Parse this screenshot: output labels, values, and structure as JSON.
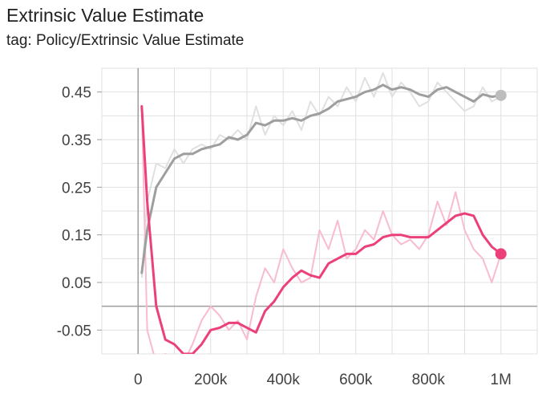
{
  "title": "Extrinsic Value Estimate",
  "subtitle": "tag: Policy/Extrinsic Value Estimate",
  "chart_data": {
    "type": "line",
    "title": "Extrinsic Value Estimate",
    "xlim": [
      -100000,
      1100000
    ],
    "ylim": [
      -0.1,
      0.5
    ],
    "x_ticks": [
      0,
      200000,
      400000,
      600000,
      800000,
      1000000
    ],
    "x_tick_labels": [
      "0",
      "200k",
      "400k",
      "600k",
      "800k",
      "1M"
    ],
    "y_ticks": [
      0.45,
      0.35,
      0.25,
      0.15,
      0.05,
      -0.05
    ],
    "y_tick_labels": [
      "0.45",
      "0.35",
      "0.25",
      "0.15",
      "0.05",
      "-0.05"
    ],
    "grid": true,
    "series": [
      {
        "color": "#9e9e9e",
        "raw_color": "#e0e0e0",
        "x": [
          10000,
          25000,
          50000,
          75000,
          100000,
          125000,
          150000,
          175000,
          200000,
          225000,
          250000,
          275000,
          300000,
          325000,
          350000,
          375000,
          400000,
          425000,
          450000,
          475000,
          500000,
          525000,
          550000,
          575000,
          600000,
          625000,
          650000,
          675000,
          700000,
          725000,
          750000,
          775000,
          800000,
          825000,
          850000,
          875000,
          900000,
          925000,
          950000,
          975000,
          1000000
        ],
        "smoothed": [
          0.07,
          0.16,
          0.25,
          0.28,
          0.31,
          0.32,
          0.32,
          0.33,
          0.335,
          0.34,
          0.355,
          0.35,
          0.36,
          0.385,
          0.38,
          0.39,
          0.39,
          0.395,
          0.39,
          0.4,
          0.405,
          0.415,
          0.43,
          0.435,
          0.44,
          0.45,
          0.455,
          0.465,
          0.455,
          0.46,
          0.455,
          0.445,
          0.44,
          0.455,
          0.46,
          0.45,
          0.44,
          0.43,
          0.445,
          0.44,
          0.443
        ],
        "raw": [
          0.06,
          0.22,
          0.3,
          0.29,
          0.33,
          0.3,
          0.33,
          0.34,
          0.33,
          0.36,
          0.35,
          0.37,
          0.35,
          0.42,
          0.36,
          0.4,
          0.38,
          0.41,
          0.37,
          0.43,
          0.4,
          0.44,
          0.42,
          0.46,
          0.43,
          0.48,
          0.44,
          0.49,
          0.44,
          0.47,
          0.45,
          0.42,
          0.43,
          0.47,
          0.45,
          0.43,
          0.41,
          0.42,
          0.46,
          0.43,
          0.44
        ],
        "last_value": 0.443
      },
      {
        "color": "#ec407a",
        "raw_color": "#f8bbd0",
        "x": [
          10000,
          25000,
          50000,
          75000,
          100000,
          125000,
          150000,
          175000,
          200000,
          225000,
          250000,
          275000,
          300000,
          325000,
          350000,
          375000,
          400000,
          425000,
          450000,
          475000,
          500000,
          525000,
          550000,
          575000,
          600000,
          625000,
          650000,
          675000,
          700000,
          725000,
          750000,
          775000,
          800000,
          825000,
          850000,
          875000,
          900000,
          925000,
          950000,
          975000,
          1000000
        ],
        "smoothed": [
          0.42,
          0.22,
          0.0,
          -0.07,
          -0.08,
          -0.1,
          -0.1,
          -0.08,
          -0.05,
          -0.045,
          -0.035,
          -0.035,
          -0.045,
          -0.055,
          -0.01,
          0.01,
          0.04,
          0.06,
          0.075,
          0.065,
          0.06,
          0.09,
          0.1,
          0.11,
          0.11,
          0.125,
          0.13,
          0.145,
          0.15,
          0.15,
          0.145,
          0.145,
          0.145,
          0.16,
          0.175,
          0.19,
          0.195,
          0.19,
          0.15,
          0.125,
          0.11
        ],
        "raw": [
          0.42,
          -0.05,
          -0.12,
          -0.1,
          -0.11,
          -0.12,
          -0.08,
          -0.03,
          0.0,
          -0.02,
          -0.05,
          -0.03,
          -0.07,
          0.02,
          0.08,
          0.05,
          0.12,
          0.08,
          0.05,
          0.06,
          0.16,
          0.12,
          0.18,
          0.1,
          0.12,
          0.16,
          0.14,
          0.2,
          0.15,
          0.13,
          0.14,
          0.12,
          0.15,
          0.22,
          0.17,
          0.24,
          0.16,
          0.12,
          0.1,
          0.05,
          0.11
        ],
        "last_value": 0.11
      }
    ]
  }
}
